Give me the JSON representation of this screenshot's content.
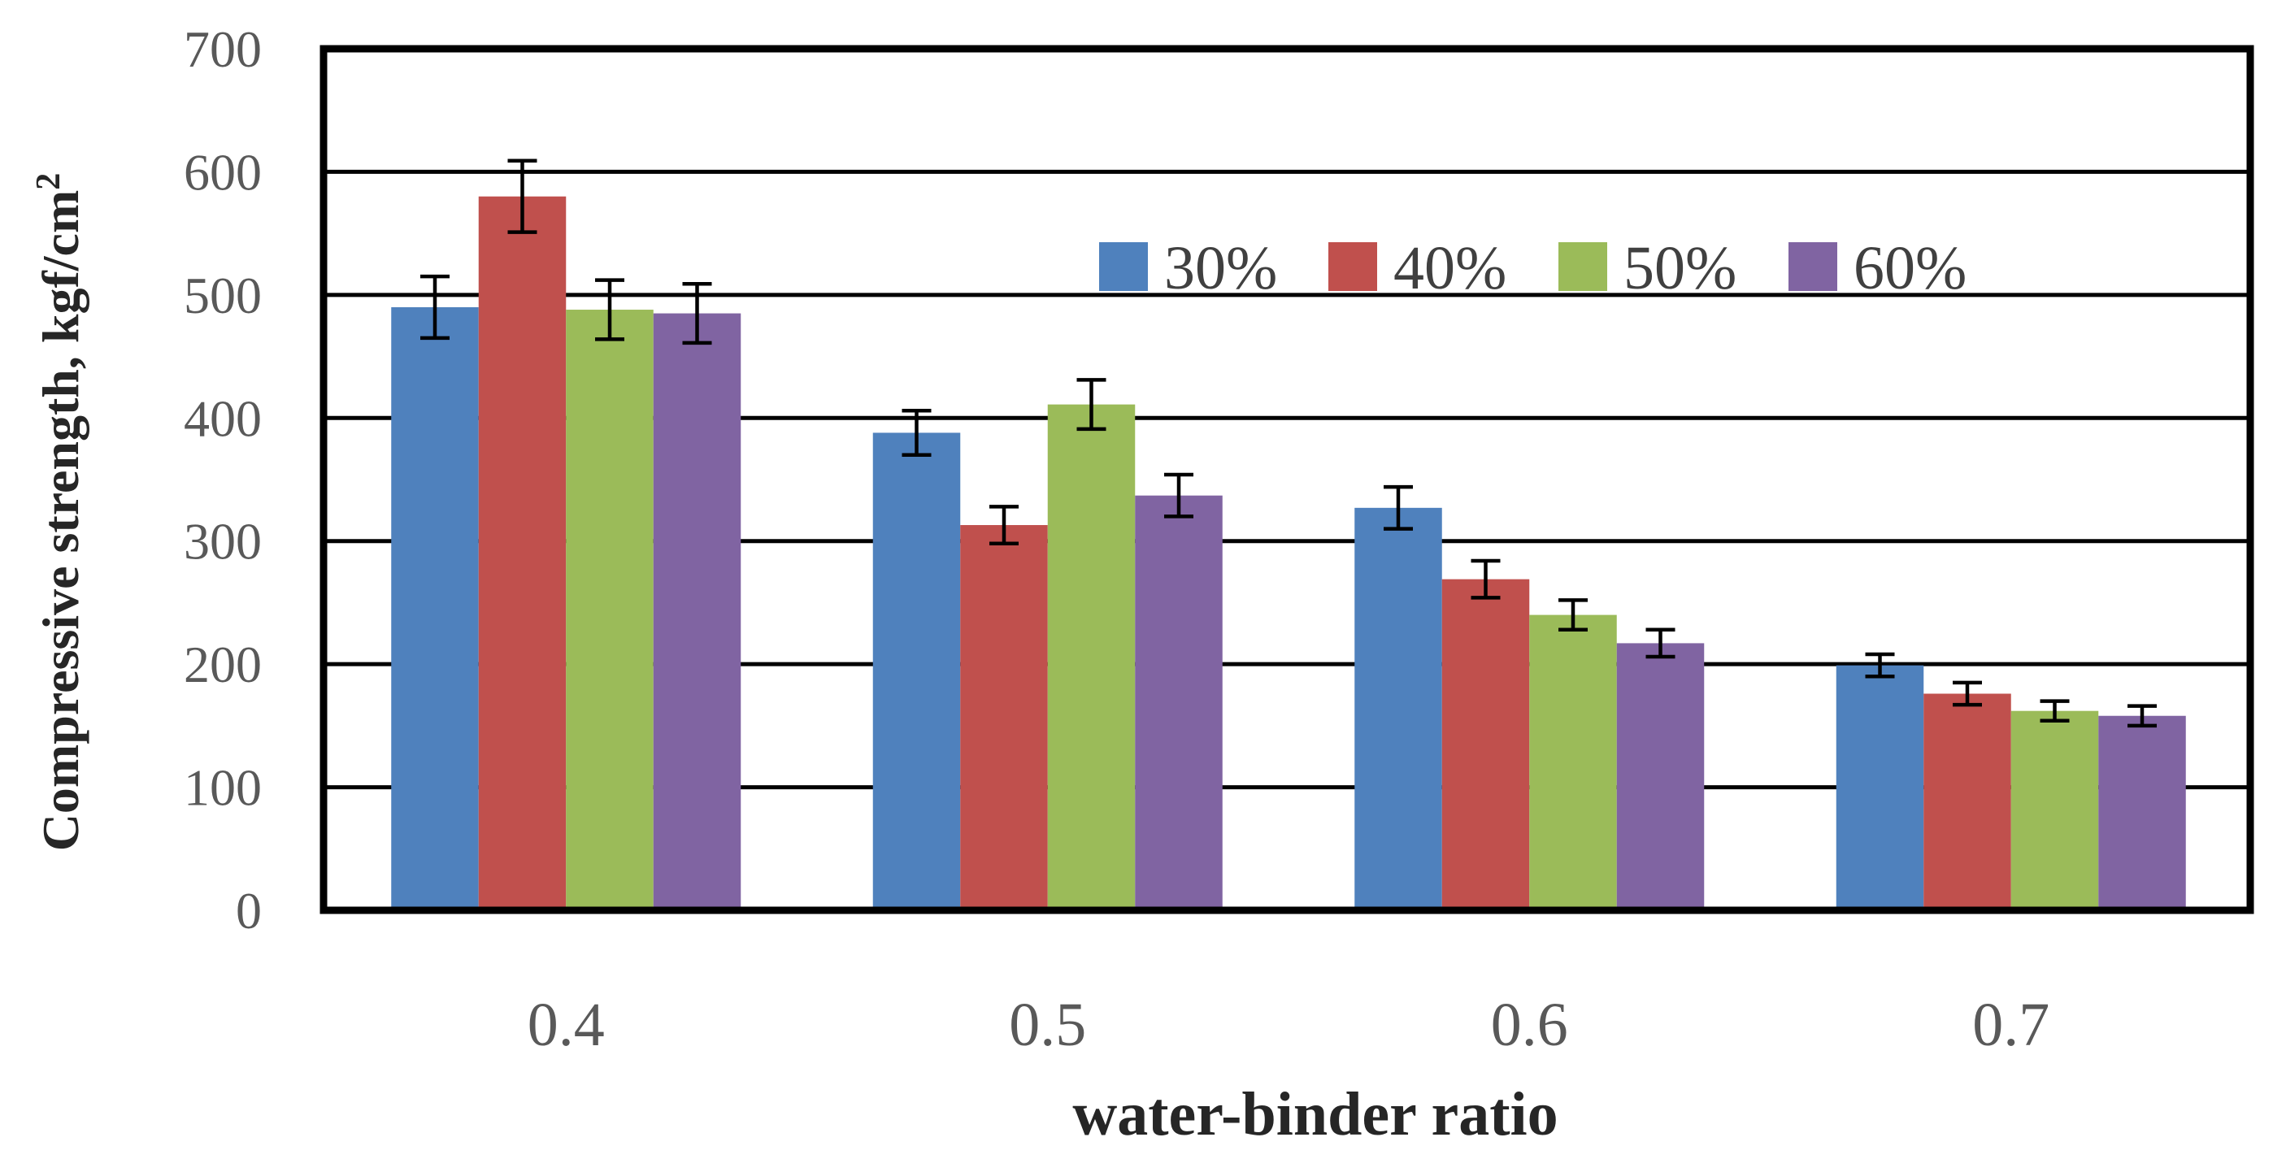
{
  "chart_data": {
    "type": "bar",
    "title": "",
    "xlabel": "water-binder ratio",
    "ylabel": "Compressive strength, kgf/cm",
    "ylabel_superscript": "2",
    "ylim": [
      0,
      700
    ],
    "yticks": [
      0,
      100,
      200,
      300,
      400,
      500,
      600,
      700
    ],
    "grid": true,
    "legend_position": "top-right",
    "categories": [
      "0.4",
      "0.5",
      "0.6",
      "0.7"
    ],
    "series": [
      {
        "name": "30%",
        "color": "#4F81BD",
        "values": [
          490,
          388,
          327,
          199
        ],
        "errors": [
          25,
          18,
          17,
          9
        ]
      },
      {
        "name": "40%",
        "color": "#C0504D",
        "values": [
          580,
          313,
          269,
          176
        ],
        "errors": [
          29,
          15,
          15,
          9
        ]
      },
      {
        "name": "50%",
        "color": "#9BBB59",
        "values": [
          488,
          411,
          240,
          162
        ],
        "errors": [
          24,
          20,
          12,
          8
        ]
      },
      {
        "name": "60%",
        "color": "#8064A2",
        "values": [
          485,
          337,
          217,
          158
        ],
        "errors": [
          24,
          17,
          11,
          8
        ]
      }
    ]
  }
}
